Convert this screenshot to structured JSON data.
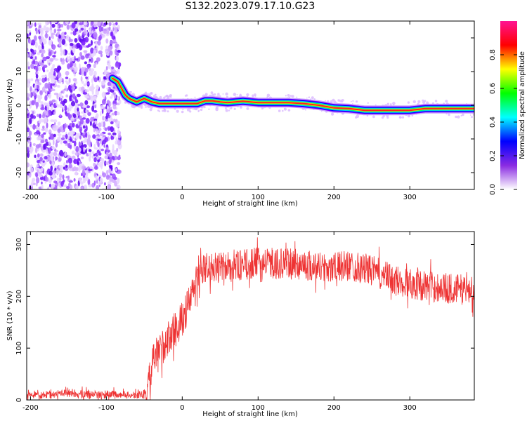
{
  "title": "S132.2023.079.17.10.G23",
  "chart_data": [
    {
      "type": "heatmap",
      "panel": "spectrogram",
      "xlabel": "Height of straight line (km)",
      "ylabel": "Frequency (Hz)",
      "xlim": [
        -205,
        385
      ],
      "ylim": [
        -25,
        25
      ],
      "x_ticks": [
        -200,
        -100,
        0,
        100,
        200,
        300
      ],
      "y_ticks": [
        -20,
        -10,
        0,
        10,
        20
      ],
      "colorbar": {
        "label": "Normalized spectral amplitude",
        "range": [
          0,
          1
        ],
        "ticks": [
          "0.0",
          "0.2",
          "0.4",
          "0.6",
          "0.8"
        ],
        "colors": [
          "#ffffff",
          "#8a2be2",
          "#0000ff",
          "#00ffff",
          "#00ff00",
          "#ffff00",
          "#ff0000",
          "#ff1493"
        ]
      },
      "noise_region": {
        "x_from": -205,
        "x_to": -82,
        "description": "broadband noise"
      },
      "signal_ridge": {
        "x": [
          -92,
          -85,
          -80,
          -75,
          -70,
          -60,
          -50,
          -45,
          -40,
          -30,
          -20,
          -10,
          0,
          10,
          20,
          30,
          40,
          50,
          60,
          70,
          80,
          100,
          120,
          140,
          160,
          180,
          200,
          220,
          240,
          260,
          280,
          300,
          320,
          340,
          360,
          385
        ],
        "y": [
          8,
          7,
          5,
          3,
          2,
          1,
          2,
          1.5,
          1,
          0.5,
          0.5,
          0.5,
          0.5,
          0.5,
          0.5,
          1.3,
          1.3,
          1,
          0.8,
          1,
          1.2,
          0.8,
          0.8,
          0.8,
          0.5,
          0,
          -0.8,
          -1,
          -1.5,
          -1.5,
          -1.5,
          -1.5,
          -1,
          -1,
          -1,
          -1
        ]
      }
    },
    {
      "type": "line",
      "panel": "snr",
      "xlabel": "Height of straight line (km)",
      "ylabel": "SNR (10 * v/v)",
      "xlim": [
        -205,
        385
      ],
      "ylim": [
        0,
        325
      ],
      "x_ticks": [
        -200,
        -100,
        0,
        100,
        200,
        300
      ],
      "y_ticks": [
        0,
        100,
        200,
        300
      ],
      "color": "#ee3333",
      "x": [
        -205,
        -150,
        -100,
        -60,
        -46,
        -40,
        -35,
        -30,
        -20,
        -10,
        0,
        10,
        20,
        30,
        50,
        80,
        100,
        150,
        200,
        220,
        250,
        280,
        300,
        350,
        385
      ],
      "y": [
        10,
        12,
        10,
        10,
        12,
        65,
        85,
        95,
        115,
        135,
        155,
        190,
        235,
        255,
        255,
        260,
        265,
        262,
        255,
        260,
        250,
        230,
        225,
        215,
        212
      ]
    }
  ]
}
